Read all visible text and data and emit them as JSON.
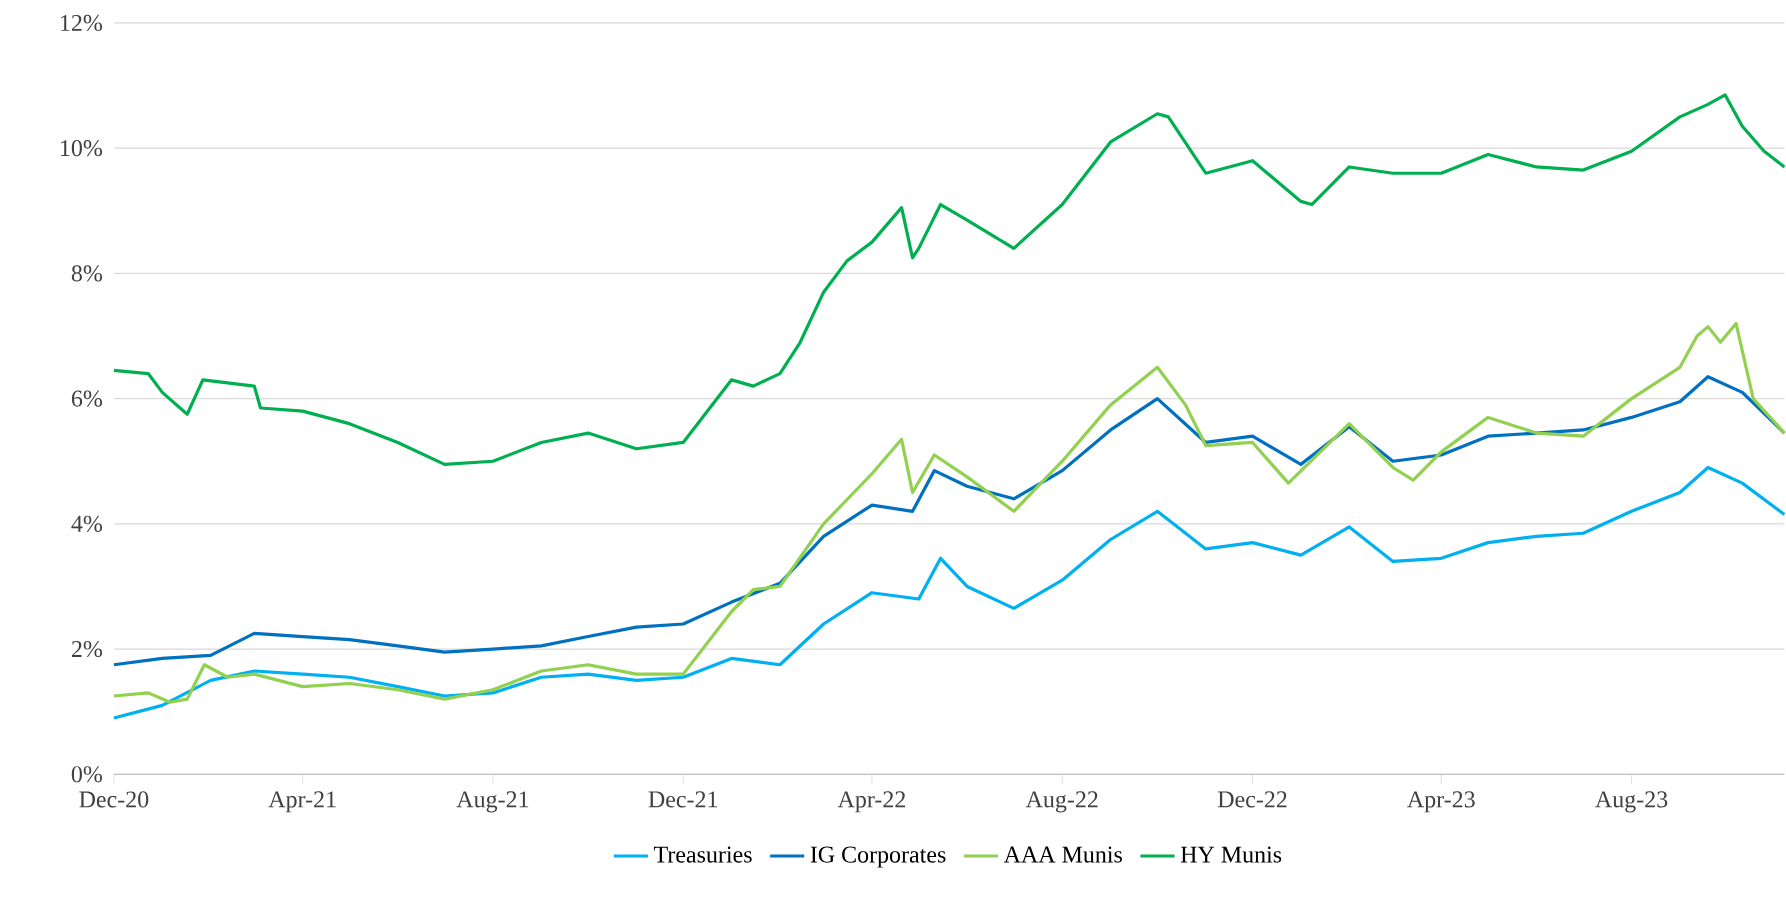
{
  "chart_data": {
    "type": "line",
    "xlim": [
      "2020-12-01",
      "2023-11-07"
    ],
    "ylim": [
      0,
      12
    ],
    "xticks": [
      {
        "value": "2020-12-01",
        "label": "Dec-20"
      },
      {
        "value": "2021-04-01",
        "label": "Apr-21"
      },
      {
        "value": "2021-08-01",
        "label": "Aug-21"
      },
      {
        "value": "2021-12-01",
        "label": "Dec-21"
      },
      {
        "value": "2022-04-01",
        "label": "Apr-22"
      },
      {
        "value": "2022-08-01",
        "label": "Aug-22"
      },
      {
        "value": "2022-12-01",
        "label": "Dec-22"
      },
      {
        "value": "2023-04-01",
        "label": "Apr-23"
      },
      {
        "value": "2023-08-01",
        "label": "Aug-23"
      }
    ],
    "yticks": [
      {
        "value": 0,
        "label": "0%"
      },
      {
        "value": 2,
        "label": "2%"
      },
      {
        "value": 4,
        "label": "4%"
      },
      {
        "value": 6,
        "label": "6%"
      },
      {
        "value": 8,
        "label": "8%"
      },
      {
        "value": 10,
        "label": "10%"
      },
      {
        "value": 12,
        "label": "12%"
      }
    ],
    "grid": "y",
    "legend": "bottom",
    "marker": "none",
    "line_style": "solid",
    "series": [
      {
        "name": "Treasuries",
        "color": "#00b0f0",
        "x": [
          "2020-12-01",
          "2021-01-01",
          "2021-02-01",
          "2021-03-01",
          "2021-04-01",
          "2021-05-01",
          "2021-06-01",
          "2021-07-01",
          "2021-08-01",
          "2021-09-01",
          "2021-10-01",
          "2021-11-01",
          "2021-12-01",
          "2022-01-01",
          "2022-02-01",
          "2022-03-01",
          "2022-04-01",
          "2022-05-01",
          "2022-05-15",
          "2022-06-01",
          "2022-07-01",
          "2022-08-01",
          "2022-09-01",
          "2022-10-01",
          "2022-11-01",
          "2022-12-01",
          "2023-01-01",
          "2023-02-01",
          "2023-03-01",
          "2023-04-01",
          "2023-05-01",
          "2023-06-01",
          "2023-07-01",
          "2023-08-01",
          "2023-09-01",
          "2023-09-19",
          "2023-10-11",
          "2023-11-07"
        ],
        "values": [
          0.9,
          1.1,
          1.5,
          1.65,
          1.6,
          1.55,
          1.4,
          1.25,
          1.3,
          1.55,
          1.6,
          1.5,
          1.55,
          1.85,
          1.75,
          2.4,
          2.9,
          2.8,
          3.45,
          3.0,
          2.65,
          3.1,
          3.75,
          4.2,
          3.6,
          3.7,
          3.5,
          3.95,
          3.4,
          3.45,
          3.7,
          3.8,
          3.85,
          4.2,
          4.5,
          4.9,
          4.65,
          4.15
        ]
      },
      {
        "name": "IG Corporates",
        "color": "#0070c0",
        "x": [
          "2020-12-01",
          "2021-01-01",
          "2021-02-01",
          "2021-03-01",
          "2021-04-01",
          "2021-05-01",
          "2021-06-01",
          "2021-07-01",
          "2021-08-01",
          "2021-09-01",
          "2021-10-01",
          "2021-11-01",
          "2021-12-01",
          "2022-01-01",
          "2022-02-01",
          "2022-03-01",
          "2022-04-01",
          "2022-04-27",
          "2022-05-11",
          "2022-06-01",
          "2022-07-01",
          "2022-08-01",
          "2022-09-01",
          "2022-10-01",
          "2022-11-01",
          "2022-12-01",
          "2023-01-01",
          "2023-02-01",
          "2023-03-01",
          "2023-04-01",
          "2023-05-01",
          "2023-06-01",
          "2023-07-01",
          "2023-08-01",
          "2023-09-01",
          "2023-09-19",
          "2023-10-11",
          "2023-11-07"
        ],
        "values": [
          1.75,
          1.85,
          1.9,
          2.25,
          2.2,
          2.15,
          2.05,
          1.95,
          2.0,
          2.05,
          2.2,
          2.35,
          2.4,
          2.75,
          3.05,
          3.8,
          4.3,
          4.2,
          4.85,
          4.6,
          4.4,
          4.85,
          5.5,
          6.0,
          5.3,
          5.4,
          4.95,
          5.55,
          5.0,
          5.1,
          5.4,
          5.45,
          5.5,
          5.7,
          5.95,
          6.35,
          6.1,
          5.45
        ]
      },
      {
        "name": "AAA Munis",
        "color": "#92d050",
        "x": [
          "2020-12-01",
          "2020-12-23",
          "2021-01-06",
          "2021-01-17",
          "2021-01-28",
          "2021-02-12",
          "2021-03-01",
          "2021-04-01",
          "2021-05-01",
          "2021-06-01",
          "2021-07-01",
          "2021-08-01",
          "2021-09-01",
          "2021-10-01",
          "2021-11-01",
          "2021-12-01",
          "2022-01-01",
          "2022-01-15",
          "2022-02-01",
          "2022-03-01",
          "2022-04-01",
          "2022-04-20",
          "2022-04-27",
          "2022-05-11",
          "2022-06-01",
          "2022-07-01",
          "2022-08-01",
          "2022-09-01",
          "2022-10-01",
          "2022-10-19",
          "2022-11-01",
          "2022-12-01",
          "2022-12-24",
          "2023-02-01",
          "2023-03-01",
          "2023-03-14",
          "2023-04-01",
          "2023-05-01",
          "2023-06-01",
          "2023-07-01",
          "2023-08-01",
          "2023-09-01",
          "2023-09-12",
          "2023-09-19",
          "2023-09-27",
          "2023-10-07",
          "2023-10-18",
          "2023-11-07"
        ],
        "values": [
          1.25,
          1.3,
          1.15,
          1.2,
          1.75,
          1.55,
          1.6,
          1.4,
          1.45,
          1.35,
          1.2,
          1.35,
          1.65,
          1.75,
          1.6,
          1.6,
          2.6,
          2.95,
          3.0,
          4.0,
          4.8,
          5.35,
          4.5,
          5.1,
          4.75,
          4.2,
          5.0,
          5.9,
          6.5,
          5.9,
          5.25,
          5.3,
          4.65,
          5.6,
          4.9,
          4.7,
          5.15,
          5.7,
          5.45,
          5.4,
          6.0,
          6.5,
          7.0,
          7.15,
          6.9,
          7.2,
          6.0,
          5.45
        ]
      },
      {
        "name": "HY Munis",
        "color": "#00b050",
        "x": [
          "2020-12-01",
          "2020-12-23",
          "2021-01-01",
          "2021-01-17",
          "2021-01-27",
          "2021-03-01",
          "2021-03-05",
          "2021-04-01",
          "2021-05-01",
          "2021-06-01",
          "2021-07-01",
          "2021-08-01",
          "2021-09-01",
          "2021-10-01",
          "2021-11-01",
          "2021-12-01",
          "2022-01-01",
          "2022-01-15",
          "2022-02-01",
          "2022-02-14",
          "2022-03-01",
          "2022-03-16",
          "2022-04-01",
          "2022-04-20",
          "2022-04-27",
          "2022-05-01",
          "2022-05-15",
          "2022-06-01",
          "2022-07-01",
          "2022-08-01",
          "2022-09-01",
          "2022-10-01",
          "2022-10-08",
          "2022-11-01",
          "2022-12-01",
          "2023-01-01",
          "2023-01-08",
          "2023-02-01",
          "2023-03-01",
          "2023-04-01",
          "2023-05-01",
          "2023-06-01",
          "2023-07-01",
          "2023-08-01",
          "2023-09-01",
          "2023-09-19",
          "2023-09-30",
          "2023-10-11",
          "2023-10-25",
          "2023-11-07"
        ],
        "values": [
          6.45,
          6.4,
          6.1,
          5.75,
          6.3,
          6.2,
          5.85,
          5.8,
          5.6,
          5.3,
          4.95,
          5.0,
          5.3,
          5.45,
          5.2,
          5.3,
          6.3,
          6.2,
          6.4,
          6.9,
          7.7,
          8.2,
          8.5,
          9.05,
          8.25,
          8.4,
          9.1,
          8.85,
          8.4,
          9.1,
          10.1,
          10.55,
          10.5,
          9.6,
          9.8,
          9.15,
          9.1,
          9.7,
          9.6,
          9.6,
          9.9,
          9.7,
          9.65,
          9.95,
          10.5,
          10.7,
          10.85,
          10.35,
          9.95,
          9.7
        ]
      }
    ]
  }
}
